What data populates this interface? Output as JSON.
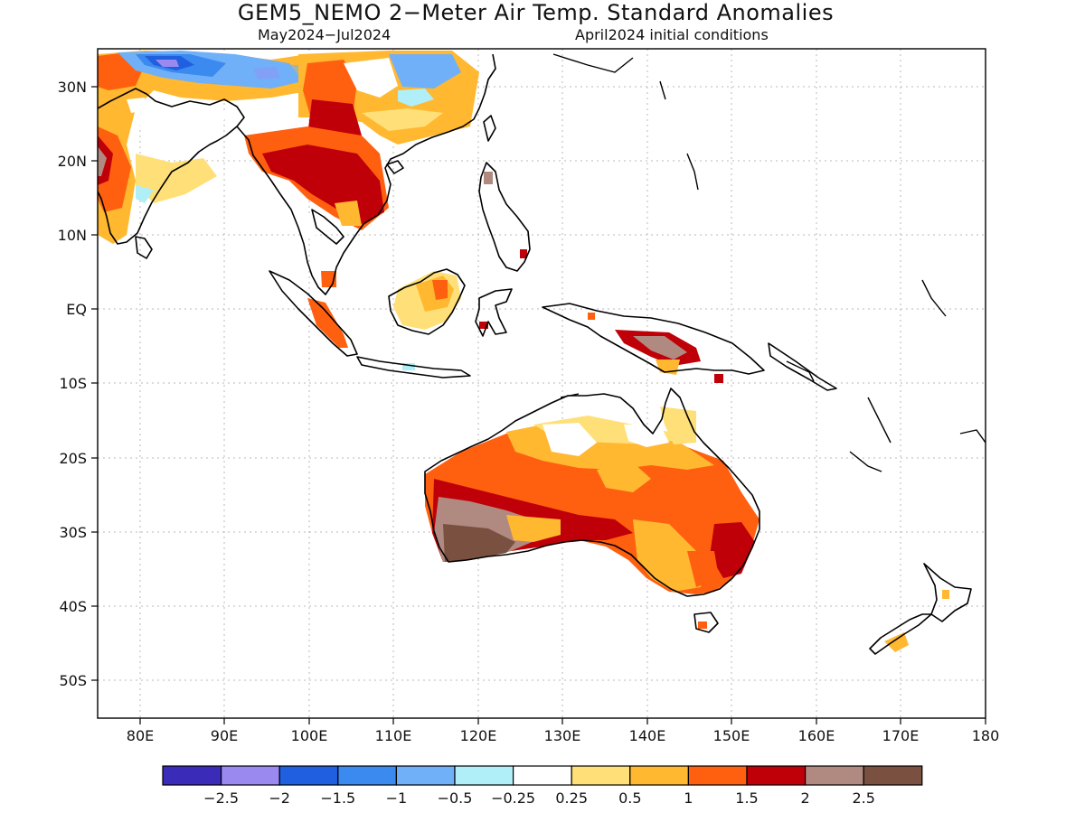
{
  "title": "GEM5_NEMO 2−Meter Air Temp. Standard Anomalies",
  "subtitle_period": "May2024−Jul2024",
  "subtitle_init": "April2024 initial conditions",
  "map": {
    "lon_range": [
      75,
      180
    ],
    "lat_range": [
      -55,
      35
    ],
    "x_ticks": [
      "80E",
      "90E",
      "100E",
      "110E",
      "120E",
      "130E",
      "140E",
      "150E",
      "160E",
      "170E",
      "180"
    ],
    "y_ticks": [
      "30N",
      "20N",
      "10N",
      "EQ",
      "10S",
      "20S",
      "30S",
      "40S",
      "50S"
    ]
  },
  "colorbar": {
    "labels": [
      "−2.5",
      "−2",
      "−1.5",
      "−1",
      "−0.5",
      "−0.25",
      "0.25",
      "0.5",
      "1",
      "1.5",
      "2",
      "2.5"
    ],
    "colors": [
      "#3a2bb8",
      "#9a8af0",
      "#2060e0",
      "#3a8af0",
      "#70b0f8",
      "#b0eef8",
      "#ffffff",
      "#ffe078",
      "#ffb830",
      "#ff6010",
      "#c00008",
      "#b08a80",
      "#7a5040"
    ]
  }
}
